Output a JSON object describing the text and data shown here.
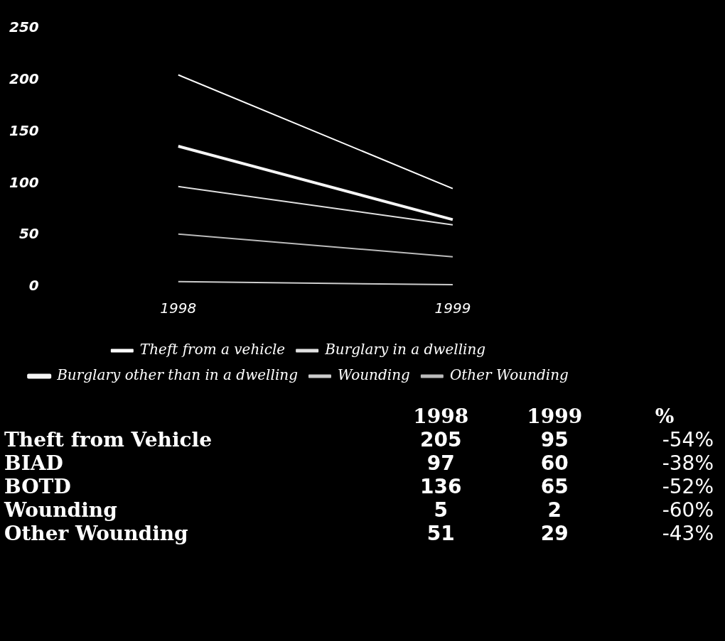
{
  "chart_data": {
    "type": "line",
    "categories": [
      "1998",
      "1999"
    ],
    "ylim": [
      0,
      250
    ],
    "yticks": [
      0,
      50,
      100,
      150,
      200,
      250
    ],
    "legend": "bottom",
    "marker": "none",
    "series": [
      {
        "name": "Theft from a vehicle",
        "color": "#ffffff",
        "values": [
          205,
          95
        ]
      },
      {
        "name": "Burglary in a dwelling",
        "color": "#e0e0e0",
        "values": [
          97,
          60
        ]
      },
      {
        "name": "Burglary other than in a dwelling",
        "color": "#f5f5f5",
        "values": [
          136,
          65
        ]
      },
      {
        "name": "Wounding",
        "color": "#cccccc",
        "values": [
          5,
          2
        ]
      },
      {
        "name": "Other Wounding",
        "color": "#bbbbbb",
        "values": [
          51,
          29
        ]
      }
    ],
    "annotations": [
      "1998",
      "1999",
      "%",
      "Theft from Vehicle",
      "205",
      "95",
      "-54%",
      "BIAD",
      "97",
      "60",
      "-38%",
      "BOTD",
      "136",
      "65",
      "-52%",
      "Wounding",
      "5",
      "2",
      "-60%",
      "Other Wounding",
      "51",
      "29",
      "-43%"
    ]
  }
}
